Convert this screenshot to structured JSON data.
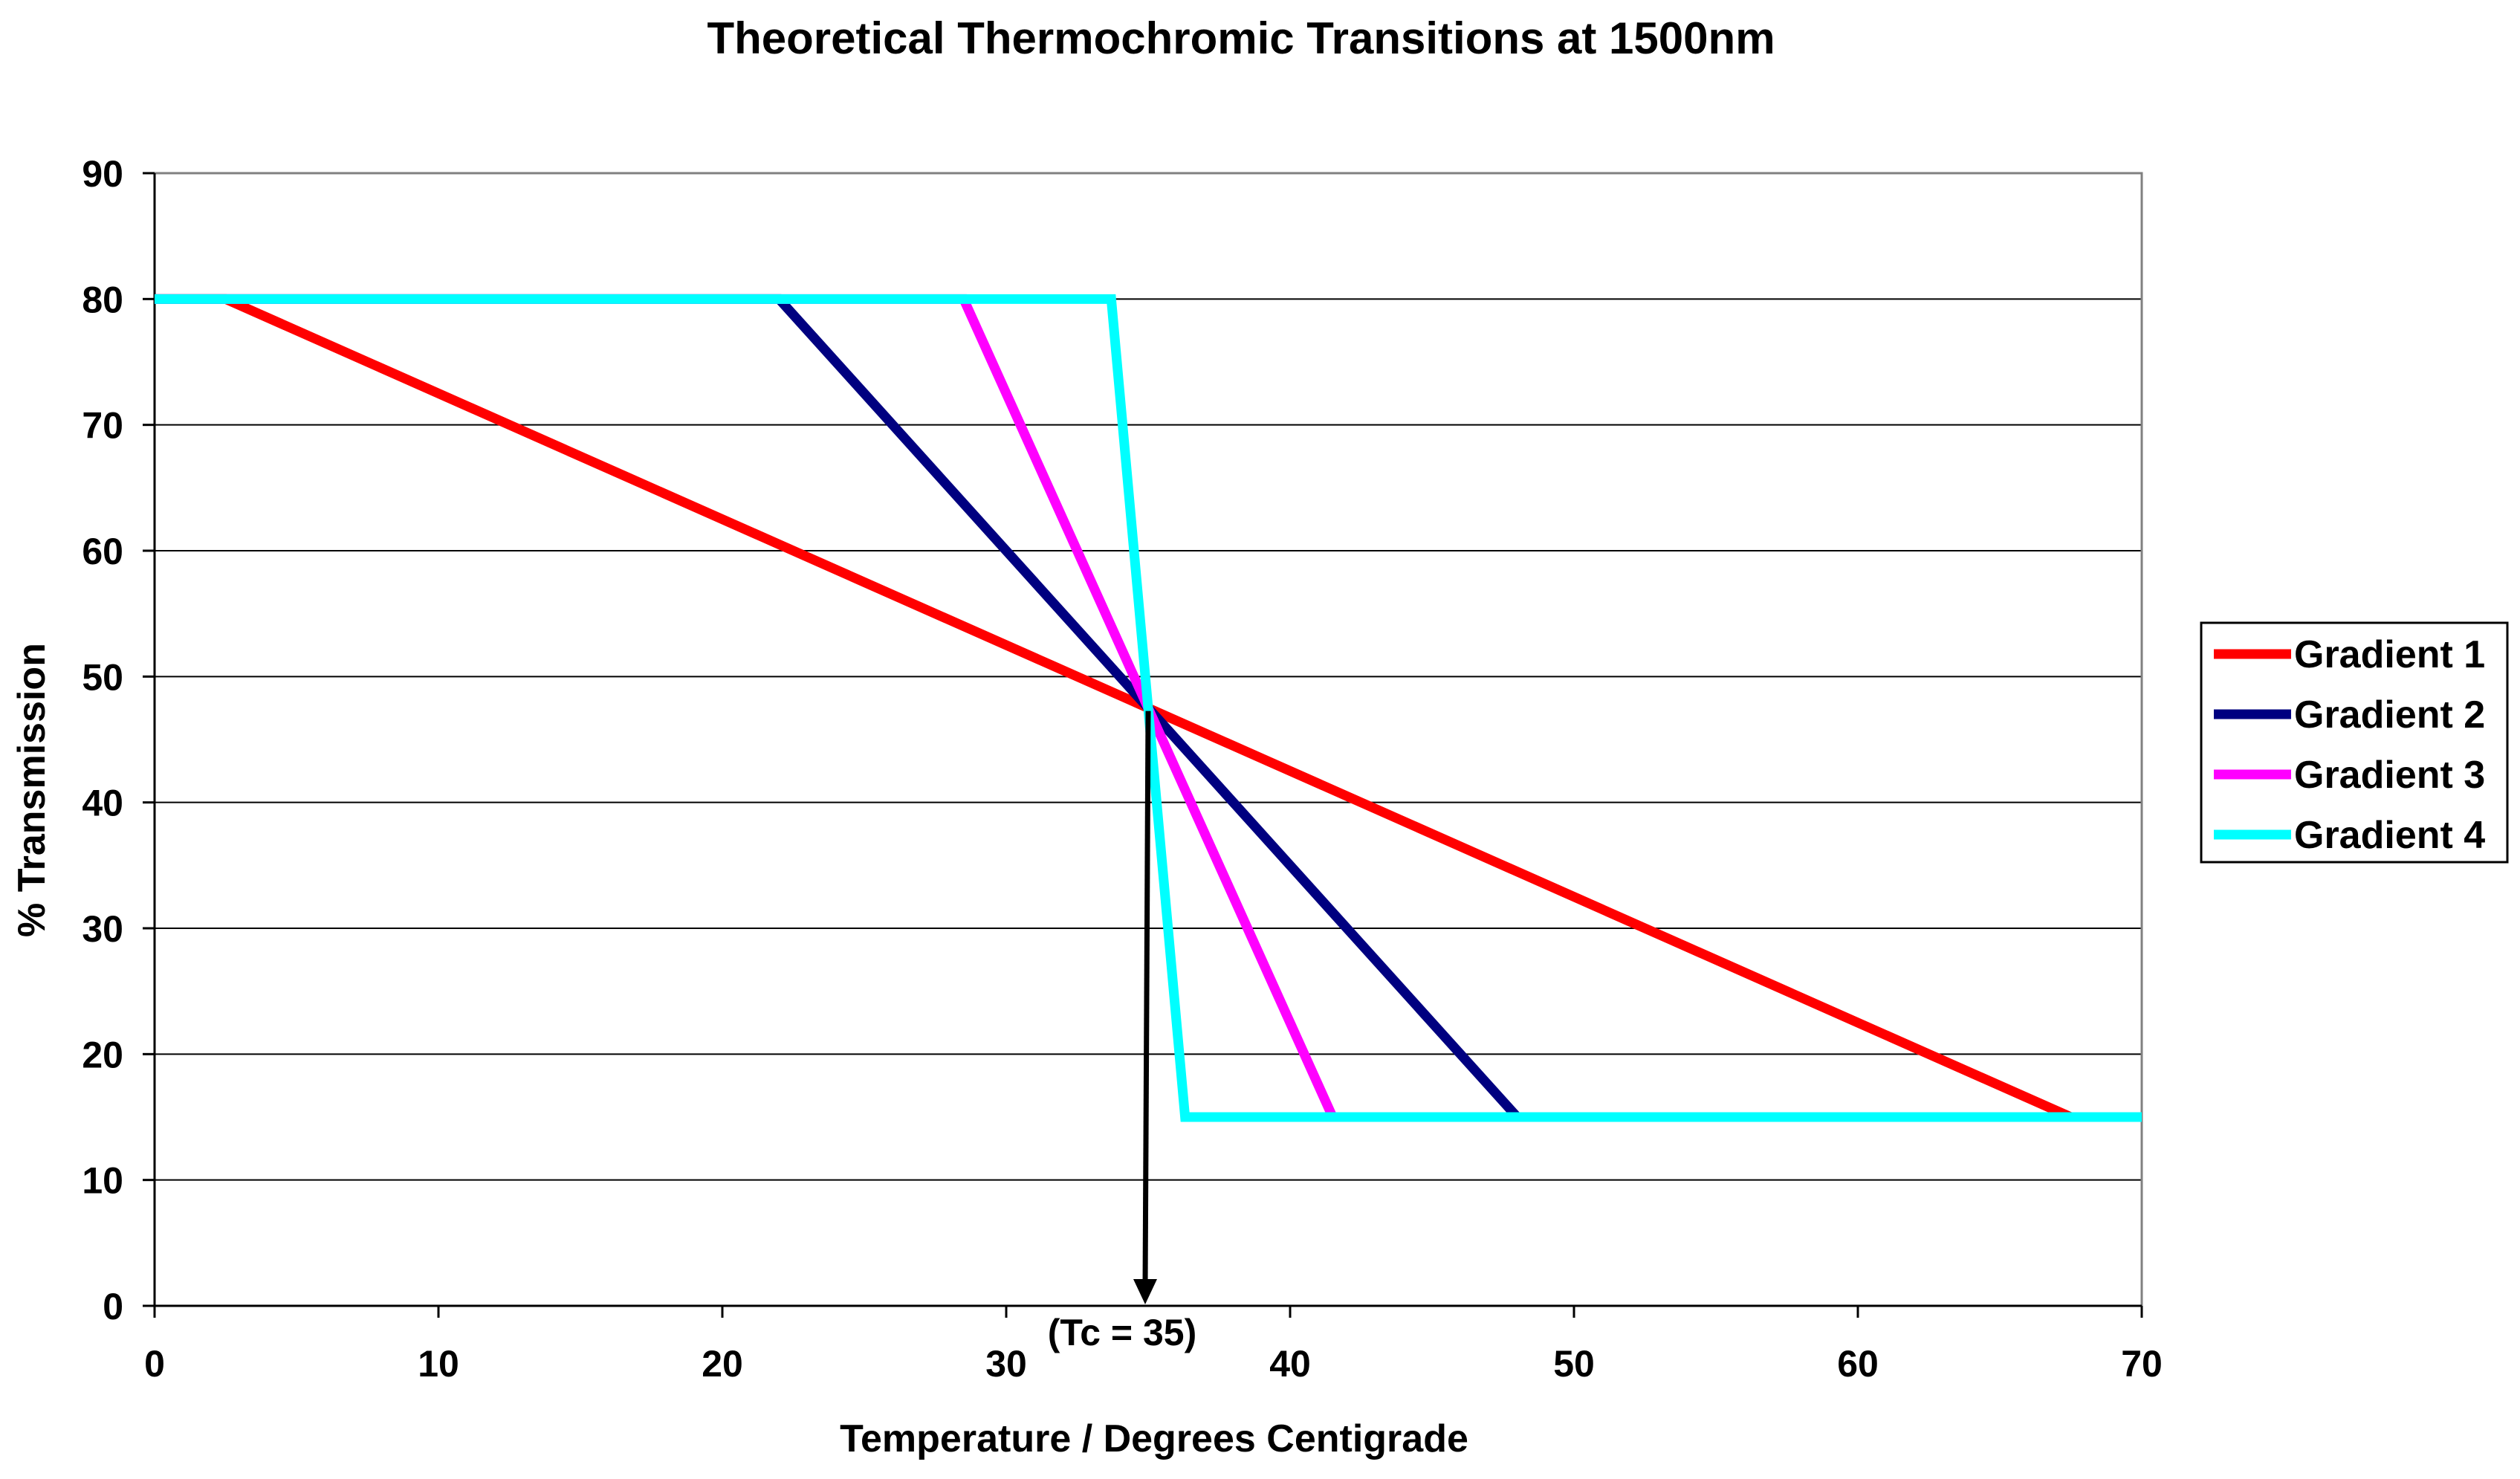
{
  "chart_data": {
    "type": "line",
    "title": "Theoretical Thermochromic Transitions at 1500nm",
    "xlabel": "Temperature / Degrees Centigrade",
    "ylabel": "% Transmission",
    "xlim": [
      0,
      70
    ],
    "ylim": [
      0,
      90
    ],
    "x_ticks": [
      0,
      10,
      20,
      30,
      40,
      50,
      60,
      70
    ],
    "y_ticks": [
      0,
      10,
      20,
      30,
      40,
      50,
      60,
      70,
      80,
      90
    ],
    "grid": "horizontal",
    "legend_position": "right",
    "series": [
      {
        "name": "Gradient 1",
        "color": "#ff0000",
        "points": [
          [
            0,
            80
          ],
          [
            2.5,
            80
          ],
          [
            35,
            47.5
          ],
          [
            67.5,
            15
          ],
          [
            70,
            15
          ]
        ]
      },
      {
        "name": "Gradient 2",
        "color": "#000080",
        "points": [
          [
            0,
            80
          ],
          [
            22,
            80
          ],
          [
            35,
            47.5
          ],
          [
            48,
            15
          ],
          [
            70,
            15
          ]
        ]
      },
      {
        "name": "Gradient 3",
        "color": "#ff00ff",
        "points": [
          [
            0,
            80
          ],
          [
            28.5,
            80
          ],
          [
            35,
            47.5
          ],
          [
            41.5,
            15
          ],
          [
            70,
            15
          ]
        ]
      },
      {
        "name": "Gradient 4",
        "color": "#00ffff",
        "points": [
          [
            0,
            80
          ],
          [
            33.7,
            80
          ],
          [
            35,
            47.5
          ],
          [
            36.3,
            15
          ],
          [
            70,
            15
          ]
        ]
      }
    ],
    "annotation": {
      "text": "(Tc = 35)",
      "x": 35,
      "y_from": 47.5,
      "y_to": 0
    }
  }
}
